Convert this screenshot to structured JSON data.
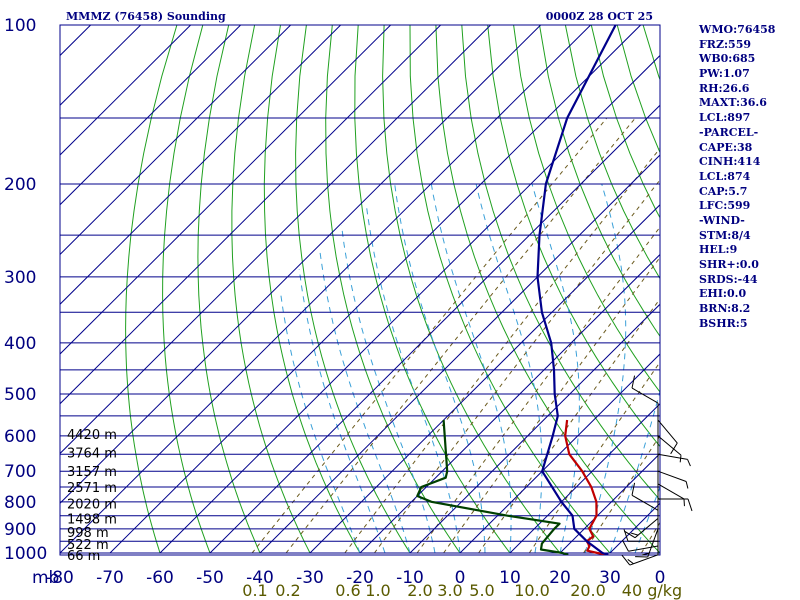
{
  "header": {
    "station_title": "MMMZ (76458) Sounding",
    "valid_time": "0000Z 28 OCT 25"
  },
  "stats": [
    "WMO:76458",
    "FRZ:559",
    "WB0:685",
    "PW:1.07",
    "RH:26.6",
    "MAXT:36.6",
    "LCL:897",
    "-PARCEL-",
    "CAPE:38",
    "CINH:414",
    "LCL:874",
    "CAP:5.7",
    "LFC:599",
    "-WIND-",
    "STM:8/4",
    "HEL:9",
    "SHR+:0.0",
    "SRDS:-44",
    "EHI:0.0",
    "BRN:8.2",
    "BSHR:5"
  ],
  "chart_data": {
    "type": "skew-t",
    "title": "MMMZ (76458) Sounding",
    "subtitle": "0000Z 28 OCT 25",
    "x_unit_label": "mb",
    "pressure_labels": [
      "100",
      "200",
      "300",
      "400",
      "500",
      "600",
      "700",
      "800",
      "900",
      "1000"
    ],
    "pressure_grid": [
      100,
      150,
      200,
      250,
      300,
      350,
      400,
      450,
      500,
      550,
      600,
      650,
      700,
      750,
      800,
      850,
      900,
      950,
      1000
    ],
    "temperature_labels": [
      "-80",
      "-70",
      "-60",
      "-50",
      "-40",
      "-30",
      "-20",
      "-10",
      "0",
      "10",
      "20",
      "30",
      "0"
    ],
    "mixing_ratio_labels": [
      "0.1",
      "0.2",
      "0.6",
      "1.0",
      "2.0",
      "3.0",
      "5.0",
      "10.0",
      "20.0",
      "40 g/kg"
    ],
    "mixing_ratio_values": [
      0.1,
      0.2,
      0.6,
      1.0,
      2.0,
      3.0,
      5.0,
      10.0,
      20.0,
      40.0
    ],
    "height_labels": [
      {
        "label": "4420 m",
        "p": 595
      },
      {
        "label": "3764 m",
        "p": 645
      },
      {
        "label": "3157 m",
        "p": 700
      },
      {
        "label": "2571 m",
        "p": 750
      },
      {
        "label": "2020 m",
        "p": 805
      },
      {
        "label": "1498 m",
        "p": 860
      },
      {
        "label": "998 m",
        "p": 912
      },
      {
        "label": "522 m",
        "p": 962
      },
      {
        "label": "66 m",
        "p": 1008
      }
    ],
    "series": [
      {
        "color": "#c00000",
        "points": [
          [
            1008,
            30.0
          ],
          [
            1000,
            27.5
          ],
          [
            990,
            25.0
          ],
          [
            970,
            24.5
          ],
          [
            950,
            23.0
          ],
          [
            930,
            23.3
          ],
          [
            900,
            21.0
          ],
          [
            850,
            19.8
          ],
          [
            800,
            17.0
          ],
          [
            750,
            13.0
          ],
          [
            700,
            8.0
          ],
          [
            650,
            2.0
          ],
          [
            600,
            -2.5
          ],
          [
            560,
            -5.3
          ]
        ]
      },
      {
        "color": "#00008b",
        "points": [
          [
            1008,
            30.0
          ],
          [
            1000,
            28.5
          ],
          [
            950,
            23.0
          ],
          [
            900,
            18.0
          ],
          [
            850,
            15.0
          ],
          [
            800,
            10.0
          ],
          [
            700,
            0.0
          ],
          [
            600,
            -5.0
          ],
          [
            550,
            -8.0
          ],
          [
            500,
            -13.0
          ],
          [
            450,
            -18.0
          ],
          [
            400,
            -24.0
          ],
          [
            350,
            -32.0
          ],
          [
            300,
            -40.0
          ],
          [
            250,
            -48.0
          ],
          [
            200,
            -57.0
          ],
          [
            150,
            -66.0
          ],
          [
            100,
            -75.0
          ]
        ]
      },
      {
        "color": "#004000",
        "points": [
          [
            1008,
            22.0
          ],
          [
            1000,
            20.5
          ],
          [
            985,
            15.5
          ],
          [
            960,
            14.5
          ],
          [
            900,
            14.0
          ],
          [
            880,
            14.0
          ],
          [
            850,
            2.0
          ],
          [
            800,
            -16.0
          ],
          [
            780,
            -20.0
          ],
          [
            750,
            -21.0
          ],
          [
            720,
            -18.0
          ],
          [
            700,
            -19.0
          ],
          [
            560,
            -30.0
          ]
        ]
      }
    ],
    "wind_barbs": [
      {
        "p": 1008,
        "dir": 250,
        "spd": 15
      },
      {
        "p": 970,
        "dir": 260,
        "spd": 10
      },
      {
        "p": 950,
        "dir": 270,
        "spd": 10
      },
      {
        "p": 900,
        "dir": 200,
        "spd": 15
      },
      {
        "p": 860,
        "dir": 230,
        "spd": 15
      },
      {
        "p": 830,
        "dir": 300,
        "spd": 10
      },
      {
        "p": 790,
        "dir": 90,
        "spd": 10
      },
      {
        "p": 740,
        "dir": 120,
        "spd": 5
      },
      {
        "p": 700,
        "dir": 110,
        "spd": 5
      },
      {
        "p": 650,
        "dir": 100,
        "spd": 5
      },
      {
        "p": 600,
        "dir": 130,
        "spd": 5
      },
      {
        "p": 560,
        "dir": 140,
        "spd": 10
      },
      {
        "p": 520,
        "dir": 300,
        "spd": 10
      }
    ]
  }
}
